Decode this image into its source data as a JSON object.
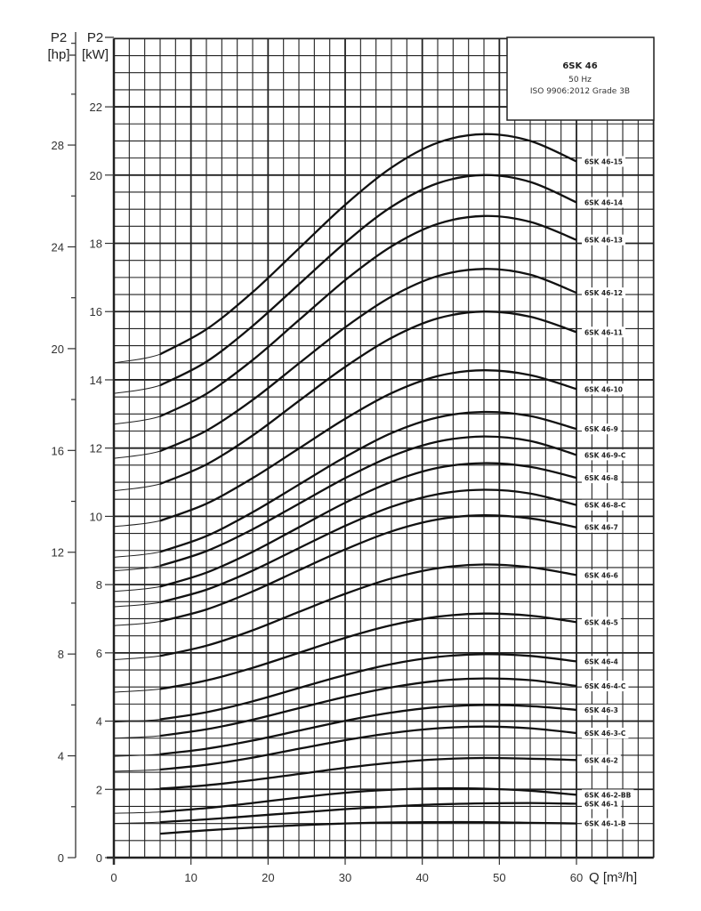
{
  "chart_data": {
    "type": "line",
    "title": "6SK 46",
    "subtitle": [
      "50 Hz",
      "ISO 9906:2012 Grade 3B"
    ],
    "xlabel": "Q [m³/h]",
    "ylabel_top": "P2",
    "ylabel_unit": "[kW]",
    "y2label_top": "P2",
    "y2label_unit": "[hp]",
    "xlim": [
      0,
      70
    ],
    "ylim": [
      0,
      24
    ],
    "grid": true,
    "legend": "labels at right end of each curve",
    "xticks": [
      0,
      10,
      20,
      30,
      40,
      50,
      60
    ],
    "yticks": [
      0,
      2,
      4,
      6,
      8,
      10,
      12,
      14,
      16,
      18,
      20,
      22
    ],
    "y2ticks": [
      0,
      4,
      8,
      12,
      16,
      20,
      24,
      28
    ],
    "x": [
      0,
      6,
      12,
      18,
      24,
      30,
      36,
      42,
      48,
      54,
      60
    ],
    "series": [
      {
        "name": "6SK 46-15",
        "values": [
          14.5,
          14.75,
          15.48,
          16.57,
          17.85,
          19.13,
          20.22,
          20.95,
          21.2,
          21.0,
          20.4
        ]
      },
      {
        "name": "6SK 46-14",
        "values": [
          13.6,
          13.84,
          14.53,
          15.58,
          16.8,
          18.02,
          19.07,
          19.76,
          20.0,
          19.8,
          19.2
        ]
      },
      {
        "name": "6SK 46-13",
        "values": [
          12.7,
          12.93,
          13.59,
          14.58,
          15.75,
          16.92,
          17.91,
          18.57,
          18.8,
          18.63,
          18.1
        ]
      },
      {
        "name": "6SK 46-12",
        "values": [
          11.7,
          11.91,
          12.51,
          13.41,
          14.48,
          15.54,
          16.44,
          17.04,
          17.25,
          17.08,
          16.55
        ]
      },
      {
        "name": "6SK 46-11",
        "values": [
          10.75,
          10.95,
          11.52,
          12.37,
          13.38,
          14.38,
          15.23,
          15.8,
          16.0,
          15.85,
          15.4
        ]
      },
      {
        "name": "6SK 46-10",
        "values": [
          9.7,
          9.87,
          10.37,
          11.12,
          11.99,
          12.86,
          13.61,
          14.11,
          14.28,
          14.14,
          13.73
        ]
      },
      {
        "name": "6SK 46-9",
        "values": [
          8.8,
          8.96,
          9.42,
          10.12,
          10.93,
          11.74,
          12.44,
          12.9,
          13.06,
          12.94,
          12.56
        ]
      },
      {
        "name": "6SK 46-9-C",
        "values": [
          8.4,
          8.55,
          8.98,
          9.62,
          10.37,
          11.12,
          11.76,
          12.19,
          12.34,
          12.21,
          11.8
        ]
      },
      {
        "name": "6SK 46-8",
        "values": [
          7.8,
          7.94,
          8.35,
          8.96,
          9.68,
          10.4,
          11.01,
          11.42,
          11.56,
          11.45,
          11.13
        ]
      },
      {
        "name": "6SK 46-8-C",
        "values": [
          7.35,
          7.48,
          7.85,
          8.41,
          9.07,
          9.72,
          10.28,
          10.65,
          10.78,
          10.67,
          10.33
        ]
      },
      {
        "name": "6SK 46-7",
        "values": [
          6.8,
          6.92,
          7.27,
          7.8,
          8.42,
          9.03,
          9.56,
          9.91,
          10.03,
          9.94,
          9.68
        ]
      },
      {
        "name": "6SK 46-6",
        "values": [
          5.8,
          5.91,
          6.21,
          6.66,
          7.2,
          7.73,
          8.18,
          8.48,
          8.59,
          8.51,
          8.28
        ]
      },
      {
        "name": "6SK 46-5",
        "values": [
          4.85,
          4.94,
          5.19,
          5.56,
          6.0,
          6.44,
          6.81,
          7.06,
          7.15,
          7.09,
          6.9
        ]
      },
      {
        "name": "6SK 46-4",
        "values": [
          3.97,
          4.05,
          4.26,
          4.58,
          4.97,
          5.35,
          5.67,
          5.88,
          5.96,
          5.91,
          5.75
        ]
      },
      {
        "name": "6SK 46-4-C",
        "values": [
          3.5,
          3.57,
          3.76,
          4.04,
          4.38,
          4.71,
          4.99,
          5.18,
          5.25,
          5.2,
          5.03
        ]
      },
      {
        "name": "6SK 46-3",
        "values": [
          2.97,
          3.03,
          3.19,
          3.43,
          3.72,
          4.01,
          4.25,
          4.41,
          4.47,
          4.44,
          4.33
        ]
      },
      {
        "name": "6SK 46-3-C",
        "values": [
          2.53,
          2.58,
          2.72,
          2.93,
          3.19,
          3.44,
          3.65,
          3.79,
          3.84,
          3.79,
          3.65
        ]
      },
      {
        "name": "6SK 46-2",
        "values": [
          1.98,
          2.02,
          2.12,
          2.27,
          2.45,
          2.63,
          2.78,
          2.88,
          2.92,
          2.9,
          2.86
        ]
      },
      {
        "name": "6SK 46-2-BB",
        "values": [
          1.3,
          1.34,
          1.45,
          1.6,
          1.76,
          1.9,
          1.99,
          2.03,
          2.02,
          1.96,
          1.84
        ]
      },
      {
        "name": "6SK 46-1",
        "values": [
          1.0,
          1.04,
          1.12,
          1.22,
          1.32,
          1.42,
          1.5,
          1.56,
          1.59,
          1.6,
          1.58
        ]
      },
      {
        "name": "6SK 46-1-B",
        "values": [
          null,
          0.7,
          0.8,
          0.88,
          0.95,
          1.0,
          1.03,
          1.04,
          1.04,
          1.02,
          1.0
        ]
      }
    ]
  }
}
